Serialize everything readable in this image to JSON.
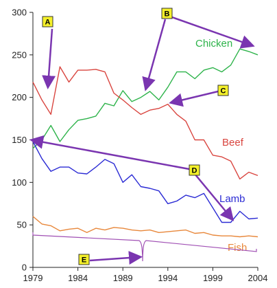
{
  "chart_data": {
    "type": "line",
    "xlim": [
      1979,
      2004
    ],
    "ylim": [
      0,
      300
    ],
    "x_ticks": [
      1979,
      1984,
      1989,
      1994,
      1999,
      2004
    ],
    "y_ticks": [
      0,
      50,
      100,
      150,
      200,
      250,
      300
    ],
    "series": [
      {
        "name": "Chicken",
        "color": "#2db34a",
        "x": [
          1979,
          1980,
          1981,
          1982,
          1983,
          1984,
          1985,
          1986,
          1987,
          1988,
          1989,
          1990,
          1991,
          1992,
          1993,
          1994,
          1995,
          1996,
          1997,
          1998,
          1999,
          2000,
          2001,
          2002,
          2003,
          2004
        ],
        "y": [
          140,
          150,
          167,
          148,
          162,
          173,
          175,
          178,
          193,
          190,
          208,
          195,
          200,
          207,
          197,
          212,
          230,
          230,
          222,
          232,
          235,
          230,
          238,
          257,
          254,
          250
        ]
      },
      {
        "name": "Beef",
        "color": "#d9453f",
        "x": [
          1979,
          1980,
          1981,
          1982,
          1983,
          1984,
          1985,
          1986,
          1987,
          1988,
          1989,
          1990,
          1991,
          1992,
          1993,
          1994,
          1995,
          1996,
          1997,
          1998,
          1999,
          2000,
          2001,
          2002,
          2003,
          2004
        ],
        "y": [
          218,
          197,
          180,
          236,
          218,
          232,
          232,
          233,
          230,
          205,
          197,
          188,
          180,
          185,
          187,
          192,
          180,
          172,
          150,
          150,
          132,
          130,
          125,
          104,
          112,
          108
        ]
      },
      {
        "name": "Lamb",
        "color": "#2a2ad4",
        "x": [
          1979,
          1980,
          1981,
          1982,
          1983,
          1984,
          1985,
          1986,
          1987,
          1988,
          1989,
          1990,
          1991,
          1992,
          1993,
          1994,
          1995,
          1996,
          1997,
          1998,
          1999,
          2000,
          2001,
          2002,
          2003,
          2004
        ],
        "y": [
          148,
          128,
          113,
          118,
          118,
          111,
          110,
          118,
          127,
          122,
          100,
          109,
          95,
          93,
          90,
          75,
          78,
          85,
          82,
          87,
          70,
          53,
          53,
          66,
          57,
          58
        ]
      },
      {
        "name": "Fish",
        "color": "#e8873a",
        "x": [
          1979,
          1980,
          1981,
          1982,
          1983,
          1984,
          1985,
          1986,
          1987,
          1988,
          1989,
          1990,
          1991,
          1992,
          1993,
          1994,
          1995,
          1996,
          1997,
          1998,
          1999,
          2000,
          2001,
          2002,
          2003,
          2004
        ],
        "y": [
          60,
          51,
          49,
          43,
          45,
          46,
          41,
          46,
          44,
          47,
          46,
          44,
          43,
          44,
          41,
          42,
          43,
          44,
          40,
          41,
          38,
          37,
          37,
          36,
          37,
          36
        ]
      }
    ],
    "markers": [
      "A",
      "B",
      "C",
      "D",
      "E"
    ]
  }
}
